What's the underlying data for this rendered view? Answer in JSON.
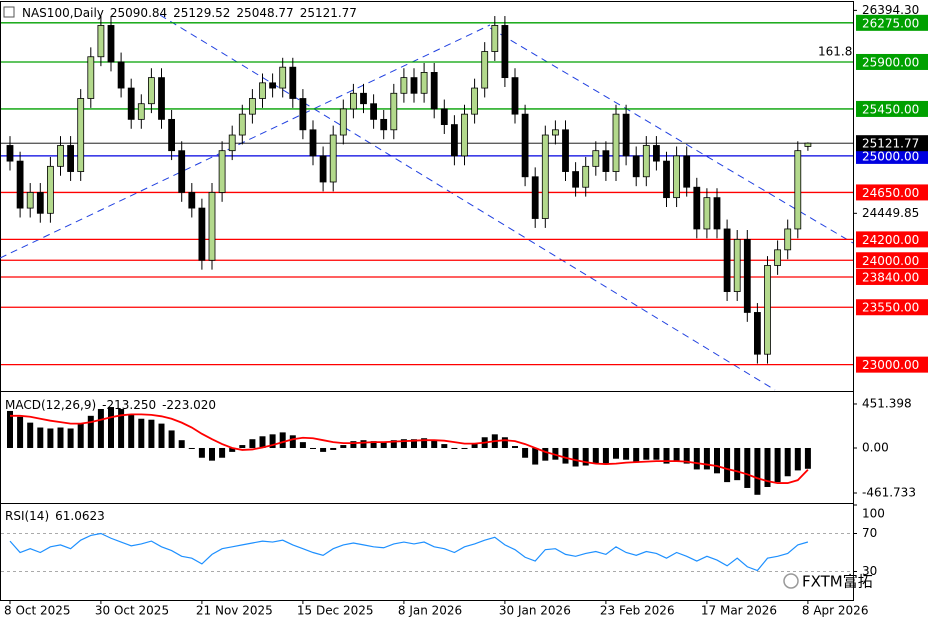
{
  "chart_data": [
    {
      "type": "candlestick",
      "symbol": "NAS100,Daily",
      "categories": [
        "8 Oct 2025",
        null,
        null,
        null,
        null,
        null,
        null,
        null,
        null,
        "30 Oct 2025",
        null,
        null,
        null,
        null,
        null,
        null,
        null,
        null,
        null,
        "21 Nov 2025",
        null,
        null,
        null,
        null,
        null,
        null,
        null,
        null,
        null,
        "15 Dec 2025",
        null,
        null,
        null,
        null,
        null,
        null,
        null,
        null,
        null,
        "8 Jan 2026",
        null,
        null,
        null,
        null,
        null,
        null,
        null,
        null,
        null,
        "30 Jan 2026",
        null,
        null,
        null,
        null,
        null,
        null,
        null,
        null,
        null,
        "23 Feb 2026",
        null,
        null,
        null,
        null,
        null,
        null,
        null,
        null,
        null,
        "17 Mar 2026",
        null,
        null,
        null,
        null,
        null,
        null,
        null,
        null,
        null,
        "8 Apr 2026"
      ],
      "open": [
        25100,
        24950,
        24500,
        24650,
        24450,
        24900,
        25100,
        24850,
        25550,
        25950,
        26250,
        25900,
        25650,
        25350,
        25500,
        25750,
        25350,
        25050,
        24650,
        24500,
        24000,
        24650,
        25050,
        25200,
        25400,
        25550,
        25700,
        25650,
        25850,
        25550,
        25250,
        25000,
        24750,
        25200,
        25450,
        25600,
        25500,
        25350,
        25250,
        25600,
        25750,
        25600,
        25800,
        25450,
        25300,
        25000,
        25400,
        25650,
        26000,
        26250,
        25750,
        25400,
        24800,
        24400,
        25200,
        25250,
        24850,
        24700,
        24900,
        25050,
        24850,
        25400,
        25000,
        24800,
        25100,
        24950,
        24600,
        25000,
        24700,
        24300,
        24600,
        24300,
        23700,
        24200,
        23500,
        23100,
        23950,
        24100,
        24300,
        25090.84
      ],
      "high": [
        25190,
        25040,
        24740,
        24740,
        24990,
        25190,
        25190,
        25640,
        26040,
        26340,
        26340,
        25990,
        25740,
        25590,
        25840,
        25840,
        25440,
        25140,
        24740,
        24590,
        24740,
        25140,
        25290,
        25490,
        25640,
        25790,
        25790,
        25940,
        25940,
        25640,
        25340,
        25090,
        25290,
        25540,
        25690,
        25690,
        25590,
        25440,
        25690,
        25840,
        25840,
        25890,
        25890,
        25540,
        25390,
        25490,
        25740,
        26090,
        26340,
        26340,
        25840,
        25490,
        24890,
        25290,
        25340,
        25340,
        24940,
        24990,
        25140,
        25140,
        25490,
        25490,
        25090,
        25190,
        25190,
        25040,
        25090,
        25090,
        24790,
        24690,
        24690,
        24390,
        24290,
        24290,
        23590,
        24040,
        24190,
        24390,
        25140,
        25129.52
      ],
      "low": [
        24860,
        24410,
        24410,
        24360,
        24360,
        24810,
        24760,
        24760,
        25460,
        25860,
        25810,
        25560,
        25260,
        25260,
        25410,
        25260,
        24960,
        24560,
        24410,
        23910,
        23910,
        24560,
        24960,
        25110,
        25310,
        25460,
        25560,
        25560,
        25460,
        25160,
        24910,
        24660,
        24660,
        25110,
        25360,
        25410,
        25260,
        25160,
        25160,
        25510,
        25510,
        25510,
        25360,
        25210,
        24910,
        24910,
        25310,
        25560,
        25910,
        25660,
        25310,
        24710,
        24310,
        24310,
        25110,
        24760,
        24610,
        24610,
        24810,
        24760,
        24760,
        24910,
        24710,
        24710,
        24860,
        24510,
        24510,
        24610,
        24210,
        24210,
        24210,
        23610,
        23610,
        23410,
        23010,
        23010,
        23860,
        24010,
        24210,
        25048.77
      ],
      "close": [
        24950,
        24500,
        24650,
        24450,
        24900,
        25100,
        24850,
        25550,
        25950,
        26250,
        25900,
        25650,
        25350,
        25500,
        25750,
        25350,
        25050,
        24650,
        24500,
        24000,
        24650,
        25050,
        25200,
        25400,
        25550,
        25700,
        25650,
        25850,
        25550,
        25250,
        25000,
        24750,
        25200,
        25450,
        25600,
        25500,
        25350,
        25250,
        25600,
        25750,
        25600,
        25800,
        25450,
        25300,
        25000,
        25400,
        25650,
        26000,
        26250,
        25750,
        25400,
        24800,
        24400,
        25200,
        25250,
        24850,
        24700,
        24900,
        25050,
        24850,
        25400,
        25000,
        24800,
        25100,
        24950,
        24600,
        25000,
        24700,
        24300,
        24600,
        24300,
        23700,
        24200,
        23500,
        23100,
        23950,
        24100,
        24300,
        25050,
        25121.77
      ],
      "up_color": "#b3d98c",
      "down_color": "#000000",
      "price_line_color": "#000000",
      "ylim": [
        22757,
        26465
      ],
      "yticks": [
        {
          "value": 26394.3,
          "label": "26394.30"
        },
        {
          "value": 24449.85,
          "label": "24449.85"
        }
      ],
      "levels": [
        {
          "value": 26275,
          "label": "26275.00",
          "color": "#00a000"
        },
        {
          "value": 25900,
          "label": "25900.00",
          "color": "#00a000"
        },
        {
          "value": 25450,
          "label": "25450.00",
          "color": "#00a000"
        },
        {
          "value": 25000,
          "label": "25000.00",
          "color": "#0000e0"
        },
        {
          "value": 24650,
          "label": "24650.00",
          "color": "#ff0000"
        },
        {
          "value": 24200,
          "label": "24200.00",
          "color": "#ff0000"
        },
        {
          "value": 24000,
          "label": "24000.00",
          "color": "#ff0000"
        },
        {
          "value": 23840,
          "label": "23840.00",
          "color": "#ff0000"
        },
        {
          "value": 23550,
          "label": "23550.00",
          "color": "#ff0000"
        },
        {
          "value": 23000,
          "label": "23000.00",
          "color": "#ff0000"
        }
      ],
      "annotation": "161.8",
      "annotation_color": "#0000c0"
    },
    {
      "type": "macd",
      "title": "MACD(12,26,9)",
      "values": [
        380,
        320,
        260,
        210,
        200,
        210,
        200,
        250,
        330,
        400,
        420,
        400,
        340,
        300,
        290,
        250,
        180,
        80,
        0,
        -100,
        -130,
        -100,
        -40,
        30,
        90,
        120,
        140,
        160,
        130,
        60,
        0,
        -40,
        -20,
        30,
        70,
        80,
        70,
        60,
        80,
        90,
        90,
        100,
        80,
        40,
        -10,
        0,
        50,
        110,
        140,
        110,
        20,
        -100,
        -170,
        -130,
        -120,
        -160,
        -190,
        -180,
        -160,
        -170,
        -110,
        -120,
        -150,
        -120,
        -120,
        -160,
        -130,
        -160,
        -220,
        -220,
        -260,
        -350,
        -330,
        -410,
        -480,
        -400,
        -350,
        -290,
        -230,
        -213.25
      ],
      "signal": [
        330,
        330,
        320,
        300,
        280,
        265,
        250,
        250,
        265,
        290,
        315,
        335,
        345,
        345,
        340,
        325,
        300,
        260,
        210,
        145,
        90,
        40,
        0,
        -20,
        -15,
        5,
        30,
        60,
        90,
        105,
        100,
        80,
        60,
        50,
        50,
        55,
        60,
        60,
        65,
        70,
        75,
        80,
        80,
        75,
        60,
        45,
        45,
        55,
        70,
        80,
        70,
        40,
        0,
        -40,
        -70,
        -100,
        -125,
        -145,
        -160,
        -165,
        -160,
        -150,
        -145,
        -140,
        -135,
        -135,
        -135,
        -140,
        -155,
        -170,
        -185,
        -215,
        -240,
        -270,
        -310,
        -340,
        -360,
        -360,
        -330,
        -223.02
      ],
      "readouts": [
        {
          "value": -213.25,
          "label": "-213.250"
        },
        {
          "value": -223.02,
          "label": "-223.020"
        }
      ],
      "color": "#000000",
      "signal_color": "#ff0000",
      "ylim": [
        -554,
        564
      ],
      "yticks": [
        451.398,
        {
          "value": 0,
          "label": "0.00"
        },
        -461.733
      ]
    },
    {
      "type": "line",
      "title": "RSI(14)",
      "values": [
        62,
        50,
        54,
        50,
        56,
        58,
        54,
        63,
        68,
        70,
        65,
        61,
        57,
        59,
        62,
        56,
        52,
        46,
        44,
        38,
        48,
        54,
        56,
        58,
        60,
        62,
        61,
        63,
        58,
        54,
        50,
        47,
        54,
        58,
        60,
        58,
        56,
        55,
        59,
        61,
        59,
        61,
        56,
        54,
        50,
        56,
        59,
        63,
        66,
        58,
        53,
        45,
        41,
        53,
        54,
        48,
        46,
        49,
        51,
        48,
        56,
        50,
        47,
        51,
        49,
        44,
        50,
        46,
        41,
        46,
        42,
        36,
        44,
        35,
        31,
        44,
        46,
        49,
        58,
        61.0623
      ],
      "color": "#1e90ff",
      "ylim": [
        0,
        100
      ],
      "yticks": [
        100,
        70,
        30
      ],
      "levels": [
        70,
        30
      ],
      "watermark": "FXTM富拓"
    }
  ]
}
